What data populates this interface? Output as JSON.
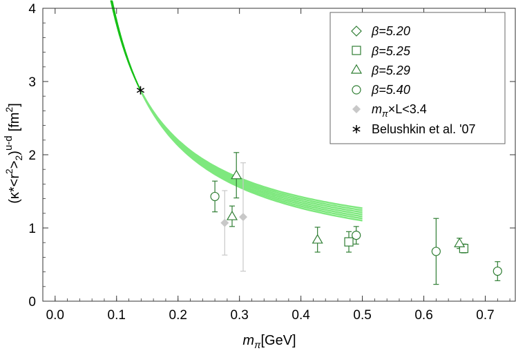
{
  "chart_data": {
    "type": "scatter",
    "title": "",
    "xlabel": {
      "main": "m",
      "sub": "π",
      "unit": "[GeV]"
    },
    "ylabel": {
      "prefix": "(κ*<r",
      "sup": "2",
      "mid": ">",
      "sub": "2",
      "close": ")",
      "suffix": "u-d",
      "unit": "[fm",
      "unitsup": "2",
      "unitclose": "]"
    },
    "xlim": [
      -0.02,
      0.75
    ],
    "ylim": [
      0,
      4
    ],
    "xticks": [
      0.0,
      0.1,
      0.2,
      0.3,
      0.4,
      0.5,
      0.6,
      0.7
    ],
    "xtick_labels": [
      "0.0",
      "0.1",
      "0.2",
      "0.3",
      "0.4",
      "0.5",
      "0.6",
      "0.7"
    ],
    "yticks": [
      0,
      1,
      2,
      3,
      4
    ],
    "ytick_labels": [
      "0",
      "1",
      "2",
      "3",
      "4"
    ],
    "colors": {
      "data": "#2e7d32",
      "gray": "#c8c8c8",
      "band": "#7ee87e",
      "curve": "#16c016",
      "black": "#000000"
    },
    "series": [
      {
        "name": "β=5.20",
        "marker": "diamond",
        "points": []
      },
      {
        "name": "β=5.25",
        "marker": "square",
        "points": [
          {
            "x": 0.478,
            "y": 0.81,
            "err": 0.14
          },
          {
            "x": 0.665,
            "y": 0.72,
            "err": 0.06
          }
        ]
      },
      {
        "name": "β=5.29",
        "marker": "triangle",
        "points": [
          {
            "x": 0.288,
            "y": 1.16,
            "err": 0.14
          },
          {
            "x": 0.295,
            "y": 1.72,
            "err": 0.31
          },
          {
            "x": 0.427,
            "y": 0.84,
            "err": 0.17
          },
          {
            "x": 0.658,
            "y": 0.79,
            "err": 0.07
          }
        ]
      },
      {
        "name": "β=5.40",
        "marker": "circle",
        "points": [
          {
            "x": 0.26,
            "y": 1.43,
            "err": 0.21
          },
          {
            "x": 0.49,
            "y": 0.9,
            "err": 0.12
          },
          {
            "x": 0.62,
            "y": 0.68,
            "err": 0.45
          },
          {
            "x": 0.72,
            "y": 0.41,
            "err": 0.13
          }
        ]
      },
      {
        "name": "mπ×L<3.4",
        "label_main": "m",
        "label_sub": "π",
        "label_rest": "×L<3.4",
        "marker": "filled-diamond",
        "points": [
          {
            "x": 0.276,
            "y": 1.07,
            "err": 0.44
          },
          {
            "x": 0.306,
            "y": 1.15,
            "err": 0.74
          }
        ]
      },
      {
        "name": "Belushkin et al. '07",
        "marker": "asterisk",
        "points": [
          {
            "x": 0.139,
            "y": 2.88,
            "err": 0
          }
        ]
      }
    ],
    "chiral_curve": {
      "x_min": 0.09,
      "x_max": 0.14,
      "x_band_max": 0.5,
      "y_at_band_end_low": 1.1,
      "y_at_band_end_high": 1.27,
      "band_lines": 7
    }
  }
}
